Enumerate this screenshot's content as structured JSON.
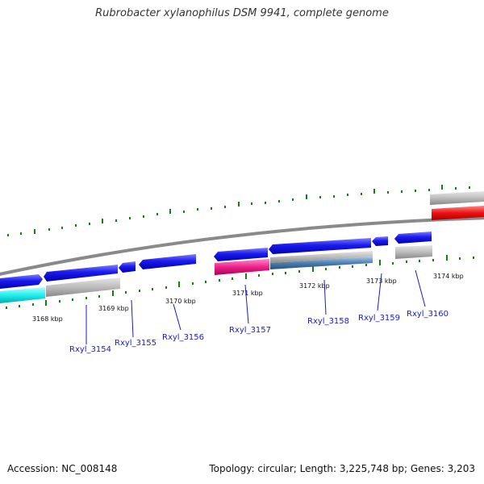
{
  "title": "Rubrobacter xylanophilus DSM 9941, complete genome",
  "footer": {
    "accession": "Accession: NC_008148",
    "summary": "Topology: circular; Length: 3,225,748 bp; Genes: 3,203"
  },
  "ticks": [
    "3168 kbp",
    "3169 kbp",
    "3170 kbp",
    "3171 kbp",
    "3172 kbp",
    "3173 kbp",
    "3174 kbp"
  ],
  "genes": [
    "Rxyl_3154",
    "Rxyl_3155",
    "Rxyl_3156",
    "Rxyl_3157",
    "Rxyl_3158",
    "Rxyl_3159",
    "Rxyl_3160"
  ],
  "colors": {
    "forward_gene": "#1a1aee",
    "reverse_cds": "#b4b4b4",
    "highlight_cyan": "#33eeee",
    "highlight_pink": "#ee2288",
    "highlight_steel": "#4d7fb0",
    "highlight_red": "#ee1111",
    "backbone": "#888888",
    "tick": "#1a7a1a",
    "gene_label": "#1a1acc"
  }
}
